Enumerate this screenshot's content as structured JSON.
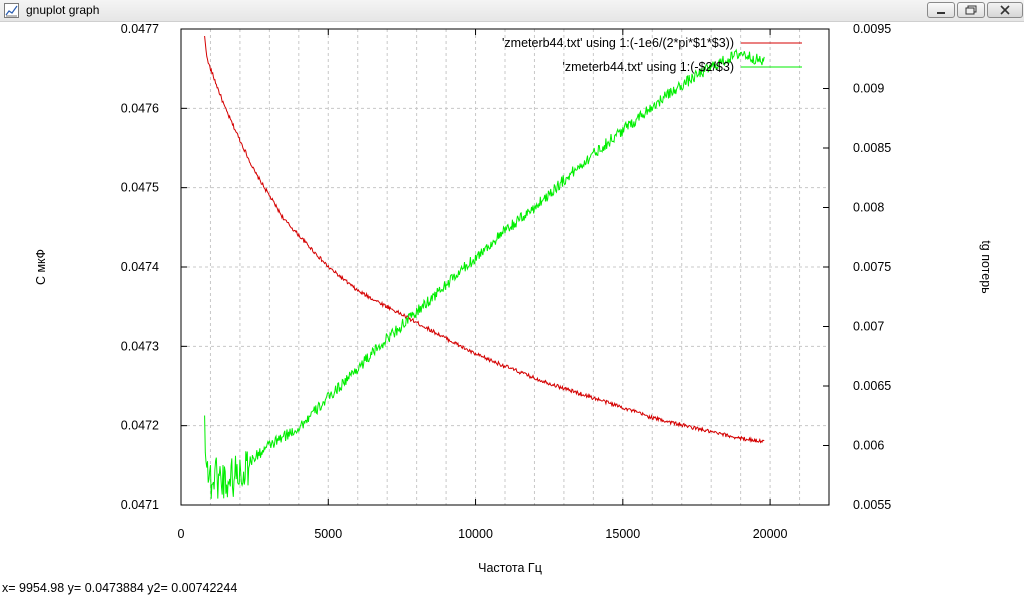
{
  "window": {
    "title": "gnuplot graph",
    "icon": "gnuplot-graph-icon",
    "controls": [
      "minimize-icon",
      "maximize-icon",
      "close-icon"
    ]
  },
  "status_bar": {
    "text": "x= 9954.98 y= 0.0473884 y2= 0.00742244"
  },
  "chart_data": {
    "type": "line",
    "title": "",
    "xlabel": "Частота Гц",
    "ylabel": "С мкФ",
    "y2label": "tg потерь",
    "xlim": [
      0,
      22000
    ],
    "ylim": [
      0.0471,
      0.0477
    ],
    "y2lim": [
      0.0055,
      0.0095
    ],
    "x_ticks": [
      0,
      5000,
      10000,
      15000,
      20000
    ],
    "x_tick_labels": [
      "0",
      "5000",
      "10000",
      "15000",
      "20000"
    ],
    "x_minor_step": 1000,
    "y_ticks": [
      0.0471,
      0.0472,
      0.0473,
      0.0474,
      0.0475,
      0.0476,
      0.0477
    ],
    "y_tick_labels": [
      "0.0471",
      "0.0472",
      "0.0473",
      "0.0474",
      "0.0475",
      "0.0476",
      "0.0477"
    ],
    "y2_ticks": [
      0.0055,
      0.006,
      0.0065,
      0.007,
      0.0075,
      0.008,
      0.0085,
      0.009,
      0.0095
    ],
    "y2_tick_labels": [
      "0.0055",
      "0.006",
      "0.0065",
      "0.007",
      "0.0075",
      "0.008",
      "0.0085",
      "0.009",
      "0.0095"
    ],
    "grid": true,
    "legend": "top-right",
    "series": [
      {
        "name": "'zmeterb44.txt' using 1:(-1e6/(2*pi*$1*$3))",
        "axis": "y",
        "color": "#d40000",
        "x": [
          800,
          900,
          1000,
          1200,
          1500,
          2000,
          2500,
          3000,
          3500,
          4000,
          5000,
          6000,
          7000,
          8000,
          9000,
          10000,
          11000,
          12000,
          13000,
          14000,
          15000,
          16000,
          17000,
          18000,
          19000,
          19800
        ],
        "y": [
          0.04769,
          0.04766,
          0.04765,
          0.04763,
          0.0476,
          0.04756,
          0.04752,
          0.04749,
          0.04746,
          0.04744,
          0.0474,
          0.04737,
          0.04735,
          0.04733,
          0.04731,
          0.04729,
          0.047275,
          0.04726,
          0.047247,
          0.047235,
          0.047223,
          0.04721,
          0.047201,
          0.047192,
          0.047184,
          0.04718
        ]
      },
      {
        "name": "'zmeterb44.txt' using 1:(-$2/$3)",
        "axis": "y2",
        "color": "#00ee00",
        "x": [
          800,
          900,
          1000,
          1200,
          1500,
          2000,
          2500,
          3000,
          4000,
          5000,
          6000,
          7000,
          8000,
          9000,
          10000,
          11000,
          12000,
          13000,
          14000,
          15000,
          16000,
          17000,
          18000,
          19000,
          19500,
          19800
        ],
        "y": [
          0.0062,
          0.0058,
          0.0057,
          0.00575,
          0.0057,
          0.00578,
          0.0059,
          0.006,
          0.00615,
          0.0064,
          0.00665,
          0.0069,
          0.00712,
          0.00735,
          0.00758,
          0.0078,
          0.008,
          0.00823,
          0.00845,
          0.00865,
          0.00885,
          0.00903,
          0.00918,
          0.0093,
          0.00925,
          0.00922
        ]
      }
    ]
  }
}
